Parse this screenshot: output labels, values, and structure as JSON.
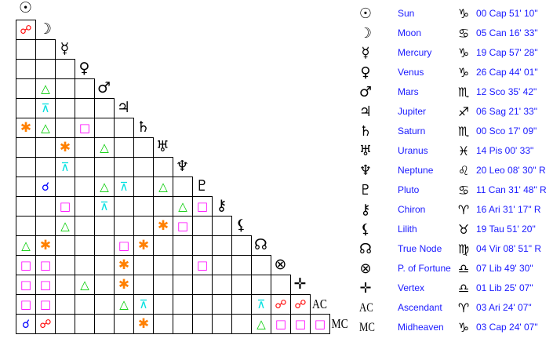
{
  "planets": [
    {
      "name": "Sun",
      "icon": "sun-icon",
      "sign_icon": "capricorn-icon",
      "position": "00 Cap 51' 10\""
    },
    {
      "name": "Moon",
      "icon": "moon-icon",
      "sign_icon": "cancer-icon",
      "position": "05 Can 16' 33\""
    },
    {
      "name": "Mercury",
      "icon": "mercury-icon",
      "sign_icon": "capricorn-icon",
      "position": "19 Cap 57' 28\""
    },
    {
      "name": "Venus",
      "icon": "venus-icon",
      "sign_icon": "capricorn-icon",
      "position": "26 Cap 44' 01\""
    },
    {
      "name": "Mars",
      "icon": "mars-icon",
      "sign_icon": "scorpio-icon",
      "position": "12 Sco 35' 42\""
    },
    {
      "name": "Jupiter",
      "icon": "jupiter-icon",
      "sign_icon": "sagittarius-icon",
      "position": "06 Sag 21' 33\""
    },
    {
      "name": "Saturn",
      "icon": "saturn-icon",
      "sign_icon": "scorpio-icon",
      "position": "00 Sco 17' 09\""
    },
    {
      "name": "Uranus",
      "icon": "uranus-icon",
      "sign_icon": "pisces-icon",
      "position": "14 Pis 00' 33\""
    },
    {
      "name": "Neptune",
      "icon": "neptune-icon",
      "sign_icon": "leo-icon",
      "position": "20 Leo 08' 30\" R"
    },
    {
      "name": "Pluto",
      "icon": "pluto-icon",
      "sign_icon": "cancer-icon",
      "position": "11 Can 31' 48\" R"
    },
    {
      "name": "Chiron",
      "icon": "chiron-icon",
      "sign_icon": "aries-icon",
      "position": "16 Ari 31' 17\" R"
    },
    {
      "name": "Lilith",
      "icon": "lilith-icon",
      "sign_icon": "taurus-icon",
      "position": "19 Tau 51' 20\""
    },
    {
      "name": "True Node",
      "icon": "node-icon",
      "sign_icon": "virgo-icon",
      "position": "04 Vir 08' 51\" R"
    },
    {
      "name": "P. of Fortune",
      "icon": "fortune-icon",
      "sign_icon": "libra-icon",
      "position": "07 Lib 49' 30\""
    },
    {
      "name": "Vertex",
      "icon": "vertex-icon",
      "sign_icon": "libra-icon",
      "position": "01 Lib 25' 07\""
    },
    {
      "name": "Ascendant",
      "icon": "ascendant-icon",
      "abbr": "AC",
      "sign_icon": "aries-icon",
      "position": "03 Ari 24' 07\""
    },
    {
      "name": "Midheaven",
      "icon": "midheaven-icon",
      "abbr": "MC",
      "sign_icon": "capricorn-icon",
      "position": "03 Cap 24' 07\""
    }
  ],
  "aspect_colors": {
    "opposition": "#ff0000",
    "conjunction": "#0000ff",
    "trine": "#00cc00",
    "square": "#ff00ff",
    "sextile": "#ff8000",
    "quincunx": "#00e0e0"
  },
  "aspects": [
    [
      1,
      0,
      "opposition"
    ],
    [
      4,
      1,
      "trine"
    ],
    [
      5,
      1,
      "quincunx"
    ],
    [
      6,
      0,
      "sextile"
    ],
    [
      6,
      1,
      "trine"
    ],
    [
      6,
      3,
      "square"
    ],
    [
      7,
      2,
      "sextile"
    ],
    [
      7,
      4,
      "trine"
    ],
    [
      8,
      2,
      "quincunx"
    ],
    [
      9,
      1,
      "conjunction"
    ],
    [
      9,
      4,
      "trine"
    ],
    [
      9,
      5,
      "quincunx"
    ],
    [
      9,
      7,
      "trine"
    ],
    [
      10,
      2,
      "square"
    ],
    [
      10,
      4,
      "quincunx"
    ],
    [
      10,
      8,
      "trine"
    ],
    [
      10,
      9,
      "square"
    ],
    [
      11,
      2,
      "trine"
    ],
    [
      11,
      7,
      "sextile"
    ],
    [
      11,
      8,
      "square"
    ],
    [
      12,
      0,
      "trine"
    ],
    [
      12,
      1,
      "sextile"
    ],
    [
      12,
      5,
      "square"
    ],
    [
      12,
      6,
      "sextile"
    ],
    [
      13,
      0,
      "square"
    ],
    [
      13,
      1,
      "square"
    ],
    [
      13,
      5,
      "sextile"
    ],
    [
      13,
      9,
      "square"
    ],
    [
      14,
      0,
      "square"
    ],
    [
      14,
      1,
      "square"
    ],
    [
      14,
      3,
      "trine"
    ],
    [
      14,
      5,
      "sextile"
    ],
    [
      15,
      0,
      "square"
    ],
    [
      15,
      1,
      "square"
    ],
    [
      15,
      5,
      "trine"
    ],
    [
      15,
      6,
      "quincunx"
    ],
    [
      15,
      12,
      "quincunx"
    ],
    [
      15,
      13,
      "opposition"
    ],
    [
      15,
      14,
      "opposition"
    ],
    [
      16,
      0,
      "conjunction"
    ],
    [
      16,
      1,
      "opposition"
    ],
    [
      16,
      6,
      "sextile"
    ],
    [
      16,
      12,
      "trine"
    ],
    [
      16,
      13,
      "square"
    ],
    [
      16,
      14,
      "square"
    ],
    [
      16,
      15,
      "square"
    ]
  ]
}
